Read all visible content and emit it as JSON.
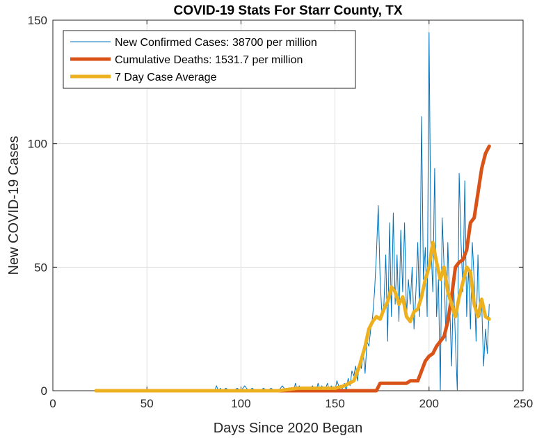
{
  "chart_data": {
    "type": "line",
    "title": "COVID-19 Stats For Starr County, TX",
    "xlabel": "Days Since 2020 Began",
    "ylabel": "New COVID-19 Cases",
    "xlim": [
      0,
      250
    ],
    "ylim": [
      0,
      150
    ],
    "xticks": [
      0,
      50,
      100,
      150,
      200,
      250
    ],
    "yticks": [
      0,
      50,
      100,
      150
    ],
    "grid": true,
    "legend_position": "top-left",
    "series": [
      {
        "name": "New Confirmed Cases: 38700 per million",
        "color": "#0072BD",
        "x": [
          23,
          30,
          40,
          50,
          60,
          70,
          80,
          86,
          87,
          88,
          89,
          90,
          92,
          94,
          96,
          98,
          100,
          102,
          104,
          106,
          108,
          110,
          112,
          114,
          116,
          118,
          120,
          122,
          124,
          126,
          128,
          129,
          130,
          131,
          132,
          134,
          136,
          138,
          140,
          141,
          142,
          143,
          144,
          145,
          146,
          147,
          148,
          149,
          150,
          151,
          152,
          153,
          154,
          155,
          156,
          157,
          158,
          159,
          160,
          161,
          162,
          163,
          164,
          165,
          166,
          167,
          168,
          169,
          170,
          171,
          172,
          173,
          174,
          175,
          176,
          177,
          178,
          179,
          180,
          181,
          182,
          183,
          184,
          185,
          186,
          187,
          188,
          189,
          190,
          191,
          192,
          193,
          194,
          195,
          196,
          197,
          198,
          199,
          200,
          201,
          202,
          203,
          204,
          205,
          206,
          207,
          208,
          209,
          210,
          211,
          212,
          213,
          214,
          215,
          216,
          217,
          218,
          219,
          220,
          221,
          222,
          223,
          224,
          225,
          226,
          227,
          228,
          229,
          230,
          231,
          232
        ],
        "values": [
          0,
          0,
          0,
          0,
          0,
          0,
          0,
          0,
          2,
          0,
          1,
          0,
          1,
          0,
          0,
          1,
          0,
          2,
          0,
          1,
          0,
          0,
          1,
          0,
          1,
          0,
          0,
          2,
          0,
          1,
          0,
          3,
          0,
          2,
          0,
          1,
          0,
          2,
          0,
          3,
          0,
          2,
          0,
          1,
          3,
          0,
          2,
          1,
          0,
          4,
          2,
          0,
          1,
          3,
          0,
          5,
          2,
          8,
          6,
          10,
          4,
          12,
          9,
          15,
          7,
          20,
          18,
          25,
          30,
          40,
          55,
          75,
          45,
          30,
          35,
          55,
          20,
          68,
          30,
          72,
          35,
          55,
          28,
          65,
          40,
          68,
          30,
          45,
          35,
          50,
          25,
          40,
          60,
          30,
          111,
          45,
          58,
          30,
          145,
          60,
          40,
          90,
          30,
          45,
          0,
          70,
          50,
          20,
          60,
          35,
          10,
          45,
          20,
          0,
          88,
          60,
          40,
          85,
          30,
          50,
          25,
          60,
          45,
          20,
          55,
          30,
          35,
          10,
          25,
          15,
          35
        ],
        "linewidth": 1
      },
      {
        "name": "Cumulative Deaths: 1531.7 per million",
        "color": "#D95319",
        "x": [
          23,
          120,
          172,
          174,
          188,
          190,
          194,
          196,
          198,
          200,
          202,
          204,
          206,
          208,
          210,
          212,
          214,
          216,
          218,
          220,
          222,
          224,
          226,
          228,
          230,
          232
        ],
        "values": [
          0,
          0,
          0,
          3,
          3,
          4,
          4,
          8,
          12,
          14,
          15,
          18,
          20,
          22,
          28,
          38,
          50,
          52,
          53,
          57,
          68,
          70,
          80,
          90,
          96,
          99
        ],
        "linewidth": 5
      },
      {
        "name": "7 Day Case Average",
        "color": "#EDB120",
        "x": [
          23,
          60,
          100,
          120,
          130,
          140,
          150,
          155,
          160,
          163,
          166,
          168,
          170,
          172,
          174,
          176,
          178,
          180,
          182,
          184,
          186,
          188,
          190,
          192,
          194,
          196,
          198,
          200,
          202,
          204,
          206,
          208,
          210,
          212,
          214,
          216,
          218,
          220,
          222,
          224,
          226,
          228,
          230,
          232
        ],
        "values": [
          0,
          0,
          0,
          0,
          1,
          1,
          1,
          2,
          4,
          10,
          18,
          25,
          28,
          30,
          29,
          33,
          36,
          42,
          40,
          35,
          38,
          30,
          28,
          32,
          33,
          38,
          45,
          50,
          60,
          52,
          45,
          50,
          40,
          35,
          30,
          38,
          44,
          50,
          48,
          35,
          30,
          37,
          30,
          29
        ],
        "linewidth": 5
      }
    ]
  }
}
